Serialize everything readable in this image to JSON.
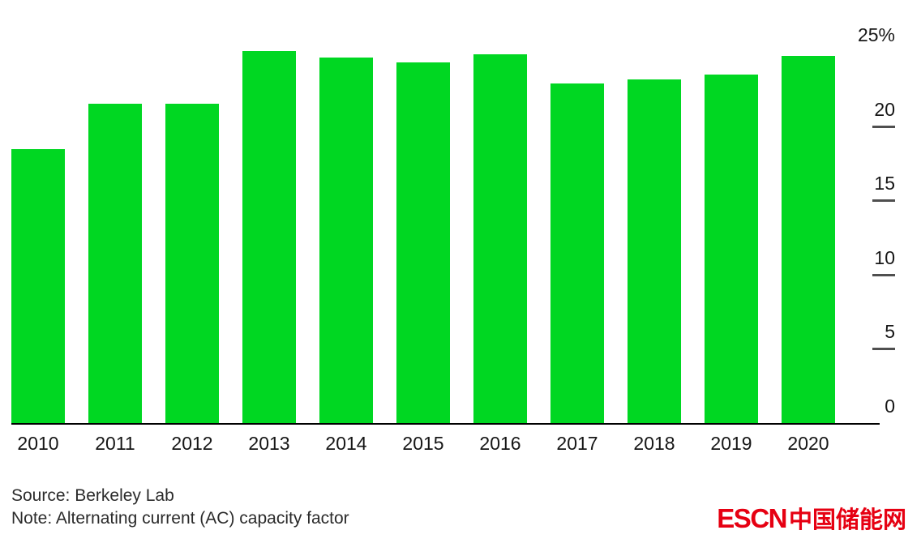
{
  "chart_data": {
    "type": "bar",
    "title": "",
    "categories": [
      "2010",
      "2011",
      "2012",
      "2013",
      "2014",
      "2015",
      "2016",
      "2017",
      "2018",
      "2019",
      "2020"
    ],
    "values": [
      17.6,
      20.5,
      20.5,
      23.9,
      23.5,
      23.2,
      23.7,
      21.8,
      22.1,
      22.4,
      23.6
    ],
    "ylabel": "",
    "xlabel": "",
    "ylim": [
      0,
      25
    ],
    "grid": false,
    "legend": "none",
    "bar_color": "#00d722",
    "axis_side": "right",
    "yticks": [
      {
        "label": "25%",
        "value": 25,
        "dash": false
      },
      {
        "label": "20",
        "value": 20,
        "dash": true
      },
      {
        "label": "15",
        "value": 15,
        "dash": true
      },
      {
        "label": "10",
        "value": 10,
        "dash": true
      },
      {
        "label": "5",
        "value": 5,
        "dash": true
      },
      {
        "label": "0",
        "value": 0,
        "dash": false
      }
    ]
  },
  "footer": {
    "source": "Source: Berkeley Lab",
    "note": "Note: Alternating current (AC) capacity factor"
  },
  "logo": {
    "escn": "ESCN",
    "cn": "中国储能网",
    "color": "#e60012"
  }
}
